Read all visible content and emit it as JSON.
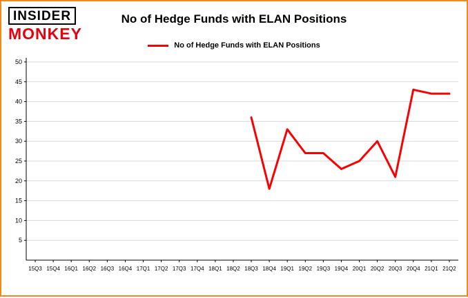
{
  "logo": {
    "line1": "INSIDER",
    "line2": "MONKEY"
  },
  "title": "No of Hedge Funds with ELAN Positions",
  "legend": {
    "label": "No of Hedge Funds with ELAN Positions"
  },
  "colors": {
    "line": "#fa0000",
    "grid": "#d9d9d9",
    "axis": "#000000",
    "border": "#ef8b1d"
  },
  "chart_data": {
    "type": "line",
    "title": "No of Hedge Funds with ELAN Positions",
    "xlabel": "",
    "ylabel": "",
    "ylim": [
      0,
      50
    ],
    "yticks": [
      5,
      10,
      15,
      20,
      25,
      30,
      35,
      40,
      45,
      50
    ],
    "grid": "horizontal",
    "legend_position": "top",
    "categories": [
      "15Q3",
      "15Q4",
      "16Q1",
      "16Q2",
      "16Q3",
      "16Q4",
      "17Q1",
      "17Q2",
      "17Q3",
      "17Q4",
      "18Q1",
      "18Q2",
      "18Q3",
      "18Q4",
      "19Q1",
      "19Q2",
      "19Q3",
      "19Q4",
      "20Q1",
      "20Q2",
      "20Q3",
      "20Q4",
      "21Q1",
      "21Q2"
    ],
    "series": [
      {
        "name": "No of Hedge Funds with ELAN Positions",
        "values": [
          null,
          null,
          null,
          null,
          null,
          null,
          null,
          null,
          null,
          null,
          null,
          null,
          36,
          18,
          33,
          27,
          27,
          23,
          25,
          30,
          21,
          43,
          42,
          42
        ]
      }
    ]
  }
}
